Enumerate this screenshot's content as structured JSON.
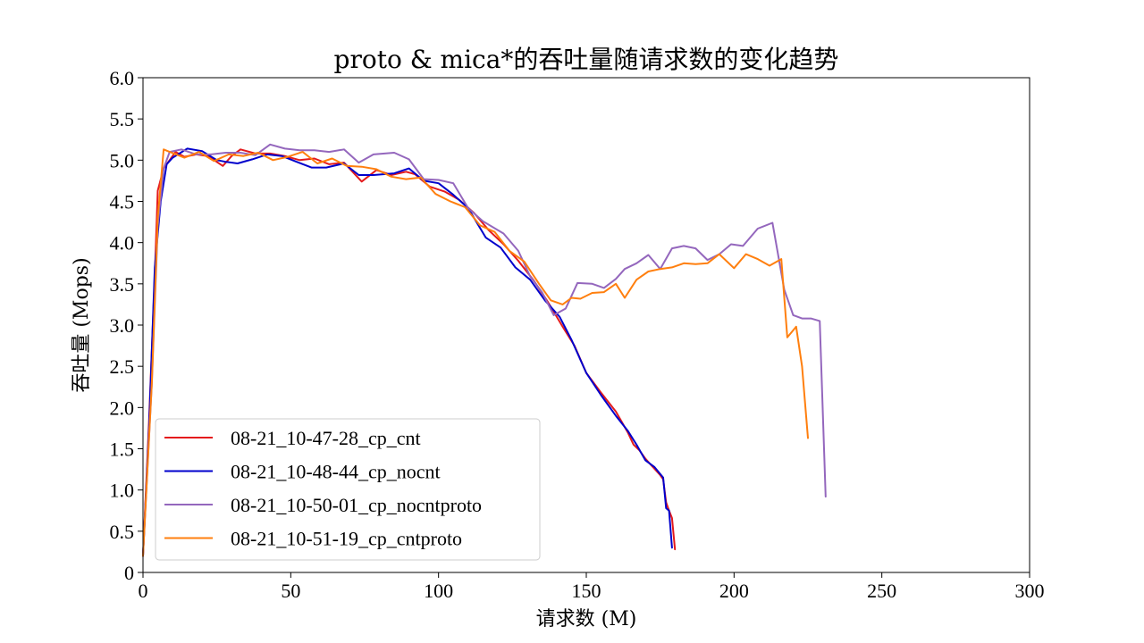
{
  "chart_data": {
    "type": "line",
    "title": "proto & mica*的吞吐量随请求数的变化趋势",
    "xlabel": "请求数 (M)",
    "ylabel": "吞吐量 (Mops)",
    "xlim": [
      0,
      300
    ],
    "ylim": [
      0,
      6
    ],
    "x_ticks": [
      "0",
      "50",
      "100",
      "150",
      "200",
      "250",
      "300"
    ],
    "y_ticks": [
      "0",
      "0.5",
      "1.0",
      "1.5",
      "2.0",
      "2.5",
      "3.0",
      "3.5",
      "4.0",
      "4.5",
      "5.0",
      "5.5",
      "6.0"
    ],
    "grid": false,
    "legend_position": "lower-left",
    "series": [
      {
        "name": "08-21_10-47-28_cp_cnt",
        "color": "#e41a1c",
        "points": [
          [
            0,
            0.2
          ],
          [
            2,
            1.8
          ],
          [
            4,
            3.6
          ],
          [
            5,
            4.63
          ],
          [
            7,
            4.9
          ],
          [
            9,
            5.0
          ],
          [
            11,
            5.1
          ],
          [
            14,
            5.04
          ],
          [
            18,
            5.07
          ],
          [
            22,
            5.05
          ],
          [
            27,
            4.93
          ],
          [
            30,
            5.05
          ],
          [
            33,
            5.13
          ],
          [
            38,
            5.08
          ],
          [
            43,
            5.08
          ],
          [
            48,
            5.05
          ],
          [
            53,
            5.0
          ],
          [
            58,
            5.02
          ],
          [
            63,
            4.95
          ],
          [
            68,
            4.97
          ],
          [
            74,
            4.74
          ],
          [
            79,
            4.88
          ],
          [
            84,
            4.82
          ],
          [
            89,
            4.86
          ],
          [
            92,
            4.83
          ],
          [
            97,
            4.68
          ],
          [
            102,
            4.62
          ],
          [
            107,
            4.52
          ],
          [
            112,
            4.36
          ],
          [
            117,
            4.15
          ],
          [
            122,
            3.98
          ],
          [
            127,
            3.78
          ],
          [
            132,
            3.55
          ],
          [
            137,
            3.28
          ],
          [
            142,
            2.98
          ],
          [
            146,
            2.75
          ],
          [
            150,
            2.42
          ],
          [
            155,
            2.18
          ],
          [
            160,
            1.95
          ],
          [
            164,
            1.7
          ],
          [
            166,
            1.55
          ],
          [
            168,
            1.48
          ],
          [
            170,
            1.38
          ],
          [
            172,
            1.3
          ],
          [
            175,
            1.18
          ],
          [
            176,
            1.13
          ],
          [
            177,
            0.85
          ],
          [
            178,
            0.75
          ],
          [
            179,
            0.66
          ],
          [
            180,
            0.28
          ]
        ]
      },
      {
        "name": "08-21_10-48-44_cp_nocnt",
        "color": "#0000cc",
        "points": [
          [
            0,
            0.2
          ],
          [
            2,
            1.7
          ],
          [
            4,
            3.7
          ],
          [
            6,
            4.5
          ],
          [
            8,
            4.95
          ],
          [
            10,
            5.03
          ],
          [
            15,
            5.14
          ],
          [
            20,
            5.11
          ],
          [
            25,
            5.0
          ],
          [
            28,
            4.98
          ],
          [
            32,
            4.96
          ],
          [
            37,
            5.01
          ],
          [
            42,
            5.07
          ],
          [
            47,
            5.05
          ],
          [
            52,
            4.98
          ],
          [
            57,
            4.91
          ],
          [
            62,
            4.91
          ],
          [
            68,
            4.96
          ],
          [
            73,
            4.82
          ],
          [
            78,
            4.82
          ],
          [
            85,
            4.84
          ],
          [
            90,
            4.9
          ],
          [
            95,
            4.75
          ],
          [
            100,
            4.72
          ],
          [
            105,
            4.58
          ],
          [
            110,
            4.42
          ],
          [
            116,
            4.06
          ],
          [
            121,
            3.94
          ],
          [
            126,
            3.7
          ],
          [
            131,
            3.55
          ],
          [
            136,
            3.3
          ],
          [
            141,
            3.1
          ],
          [
            145,
            2.82
          ],
          [
            150,
            2.42
          ],
          [
            155,
            2.15
          ],
          [
            160,
            1.9
          ],
          [
            164,
            1.72
          ],
          [
            167,
            1.55
          ],
          [
            170,
            1.36
          ],
          [
            173,
            1.28
          ],
          [
            176,
            1.15
          ],
          [
            177,
            0.78
          ],
          [
            178,
            0.75
          ],
          [
            179,
            0.3
          ]
        ]
      },
      {
        "name": "08-21_10-50-01_cp_nocntproto",
        "color": "#9467bd",
        "points": [
          [
            0,
            0.2
          ],
          [
            3,
            2.3
          ],
          [
            5,
            4.2
          ],
          [
            7,
            4.9
          ],
          [
            9,
            5.1
          ],
          [
            13,
            5.13
          ],
          [
            18,
            5.07
          ],
          [
            23,
            5.07
          ],
          [
            28,
            5.09
          ],
          [
            33,
            5.09
          ],
          [
            38,
            5.06
          ],
          [
            43,
            5.19
          ],
          [
            48,
            5.14
          ],
          [
            53,
            5.12
          ],
          [
            58,
            5.12
          ],
          [
            63,
            5.1
          ],
          [
            68,
            5.13
          ],
          [
            73,
            4.97
          ],
          [
            78,
            5.07
          ],
          [
            85,
            5.09
          ],
          [
            90,
            5.01
          ],
          [
            95,
            4.77
          ],
          [
            100,
            4.76
          ],
          [
            105,
            4.72
          ],
          [
            110,
            4.42
          ],
          [
            115,
            4.26
          ],
          [
            122,
            4.11
          ],
          [
            127,
            3.9
          ],
          [
            131,
            3.59
          ],
          [
            135,
            3.4
          ],
          [
            139,
            3.12
          ],
          [
            143,
            3.2
          ],
          [
            147,
            3.51
          ],
          [
            152,
            3.5
          ],
          [
            156,
            3.45
          ],
          [
            160,
            3.56
          ],
          [
            163,
            3.68
          ],
          [
            167,
            3.75
          ],
          [
            171,
            3.85
          ],
          [
            175,
            3.68
          ],
          [
            179,
            3.93
          ],
          [
            183,
            3.96
          ],
          [
            187,
            3.93
          ],
          [
            191,
            3.79
          ],
          [
            195,
            3.86
          ],
          [
            199,
            3.98
          ],
          [
            203,
            3.96
          ],
          [
            208,
            4.17
          ],
          [
            213,
            4.24
          ],
          [
            217,
            3.43
          ],
          [
            220,
            3.12
          ],
          [
            223,
            3.08
          ],
          [
            226,
            3.08
          ],
          [
            229,
            3.05
          ],
          [
            231,
            0.92
          ]
        ]
      },
      {
        "name": "08-21_10-51-19_cp_cntproto",
        "color": "#ff7f0e",
        "points": [
          [
            0,
            0.2
          ],
          [
            3,
            2.3
          ],
          [
            5,
            4.3
          ],
          [
            7,
            5.13
          ],
          [
            9,
            5.1
          ],
          [
            14,
            5.03
          ],
          [
            19,
            5.1
          ],
          [
            24,
            4.99
          ],
          [
            29,
            5.07
          ],
          [
            34,
            5.05
          ],
          [
            39,
            5.09
          ],
          [
            44,
            5.0
          ],
          [
            49,
            5.04
          ],
          [
            54,
            5.1
          ],
          [
            59,
            4.96
          ],
          [
            64,
            5.02
          ],
          [
            69,
            4.93
          ],
          [
            74,
            4.92
          ],
          [
            79,
            4.89
          ],
          [
            84,
            4.8
          ],
          [
            89,
            4.77
          ],
          [
            94,
            4.79
          ],
          [
            99,
            4.59
          ],
          [
            104,
            4.5
          ],
          [
            109,
            4.43
          ],
          [
            114,
            4.21
          ],
          [
            119,
            4.13
          ],
          [
            124,
            3.9
          ],
          [
            129,
            3.77
          ],
          [
            134,
            3.5
          ],
          [
            138,
            3.3
          ],
          [
            142,
            3.25
          ],
          [
            145,
            3.33
          ],
          [
            148,
            3.32
          ],
          [
            152,
            3.39
          ],
          [
            156,
            3.4
          ],
          [
            160,
            3.5
          ],
          [
            163,
            3.33
          ],
          [
            167,
            3.55
          ],
          [
            171,
            3.65
          ],
          [
            175,
            3.68
          ],
          [
            179,
            3.7
          ],
          [
            183,
            3.75
          ],
          [
            187,
            3.74
          ],
          [
            191,
            3.75
          ],
          [
            195,
            3.86
          ],
          [
            200,
            3.69
          ],
          [
            204,
            3.86
          ],
          [
            208,
            3.8
          ],
          [
            212,
            3.72
          ],
          [
            216,
            3.8
          ],
          [
            218,
            2.85
          ],
          [
            221,
            2.98
          ],
          [
            223,
            2.5
          ],
          [
            225,
            1.63
          ]
        ]
      }
    ]
  }
}
